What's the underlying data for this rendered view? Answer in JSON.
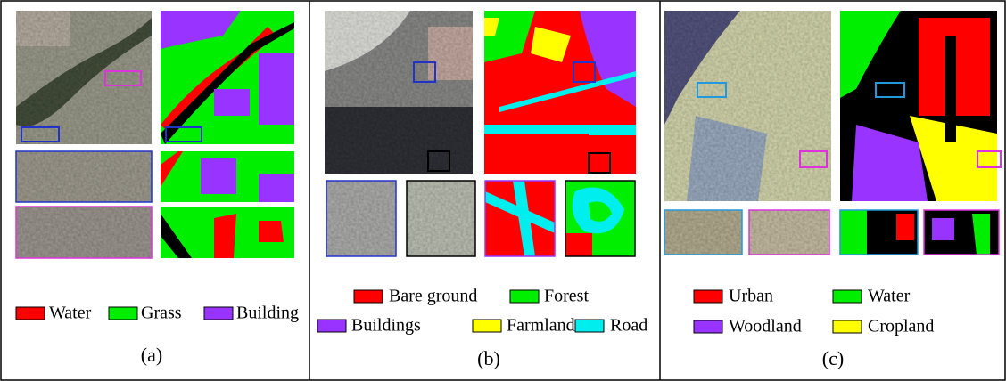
{
  "panels": [
    {
      "caption": "(a)",
      "legend": [
        {
          "label": "Water",
          "color": "#ff0000"
        },
        {
          "label": "Grass",
          "color": "#00ee00"
        },
        {
          "label": "Building",
          "color": "#9933ff"
        }
      ]
    },
    {
      "caption": "(b)",
      "legend": [
        {
          "label": "Bare ground",
          "color": "#ff0000"
        },
        {
          "label": "Forest",
          "color": "#00ee00"
        },
        {
          "label": "Buildings",
          "color": "#9933ff"
        },
        {
          "label": "Farmland",
          "color": "#ffff00"
        },
        {
          "label": "Road",
          "color": "#00eeee"
        }
      ]
    },
    {
      "caption": "(c)",
      "legend": [
        {
          "label": "Urban",
          "color": "#ff0000"
        },
        {
          "label": "Water",
          "color": "#00ee00"
        },
        {
          "label": "Woodland",
          "color": "#9933ff"
        },
        {
          "label": "Cropland",
          "color": "#ffff00"
        }
      ]
    }
  ]
}
